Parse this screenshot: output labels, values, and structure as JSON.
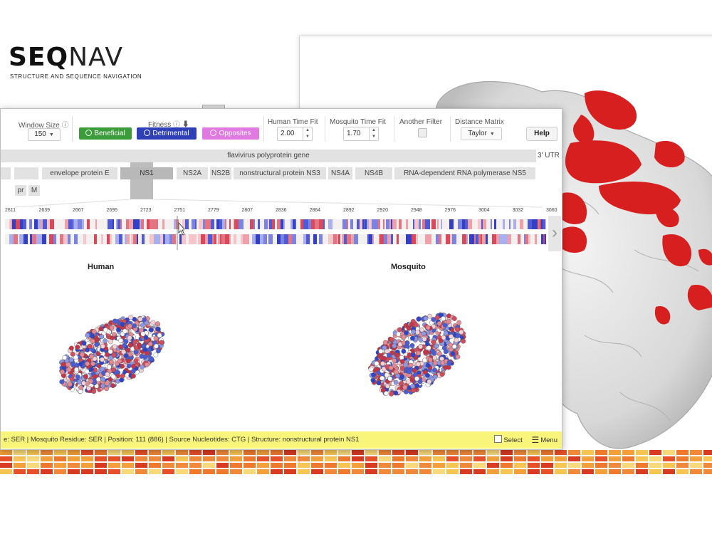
{
  "app": {
    "logo_bold": "SEQ",
    "logo_thin": "NAV",
    "tagline": "STRUCTURE AND SEQUENCE NAVIGATION"
  },
  "controls": {
    "window_size": {
      "label": "Window Size",
      "value": "150"
    },
    "fitness": {
      "label": "Fitness",
      "buttons": [
        {
          "label": "Beneficial",
          "color": "#3a9d3a"
        },
        {
          "label": "Detrimental",
          "color": "#2f3fb8"
        },
        {
          "label": "Opposites",
          "color": "#e079e0"
        }
      ]
    },
    "human_time_fit": {
      "label": "Human Time Fit",
      "value": "2.00"
    },
    "mosquito_time_fit": {
      "label": "Mosquito Time Fit",
      "value": "1.70"
    },
    "another_filter": {
      "label": "Another Filter"
    },
    "distance_matrix": {
      "label": "Distance Matrix",
      "value": "Taylor"
    },
    "help_label": "Help"
  },
  "genome": {
    "gene_label": "flavivirus polyprotein gene",
    "utr_label": "3' UTR",
    "segments": [
      "envelope protein E",
      "NS1",
      "NS2A",
      "NS2B",
      "nonstructural protein NS3",
      "NS4A",
      "NS4B",
      "RNA-dependent RNA polymerase NS5"
    ],
    "small_segments": [
      "pr",
      "M"
    ],
    "selected_segment": "NS1"
  },
  "ruler": {
    "ticks": [
      "2611",
      "2639",
      "2667",
      "2695",
      "2723",
      "2751",
      "2779",
      "2807",
      "2836",
      "2864",
      "2892",
      "2920",
      "2948",
      "2976",
      "3004",
      "3032",
      "3060"
    ]
  },
  "panes": {
    "human_title": "Human",
    "mosquito_title": "Mosquito"
  },
  "status": {
    "text": "e: SER | Mosquito Residue: SER | Position: 111 (886) | Source Nucleotides: CTG | Structure: nonstructural protein NS1",
    "select_label": "Select",
    "menu_label": "Menu"
  },
  "colors": {
    "highlight_red": "#d81f1f",
    "status_yellow": "#f9f57a",
    "track_blue": "#3340c6",
    "track_red": "#d9495a"
  }
}
